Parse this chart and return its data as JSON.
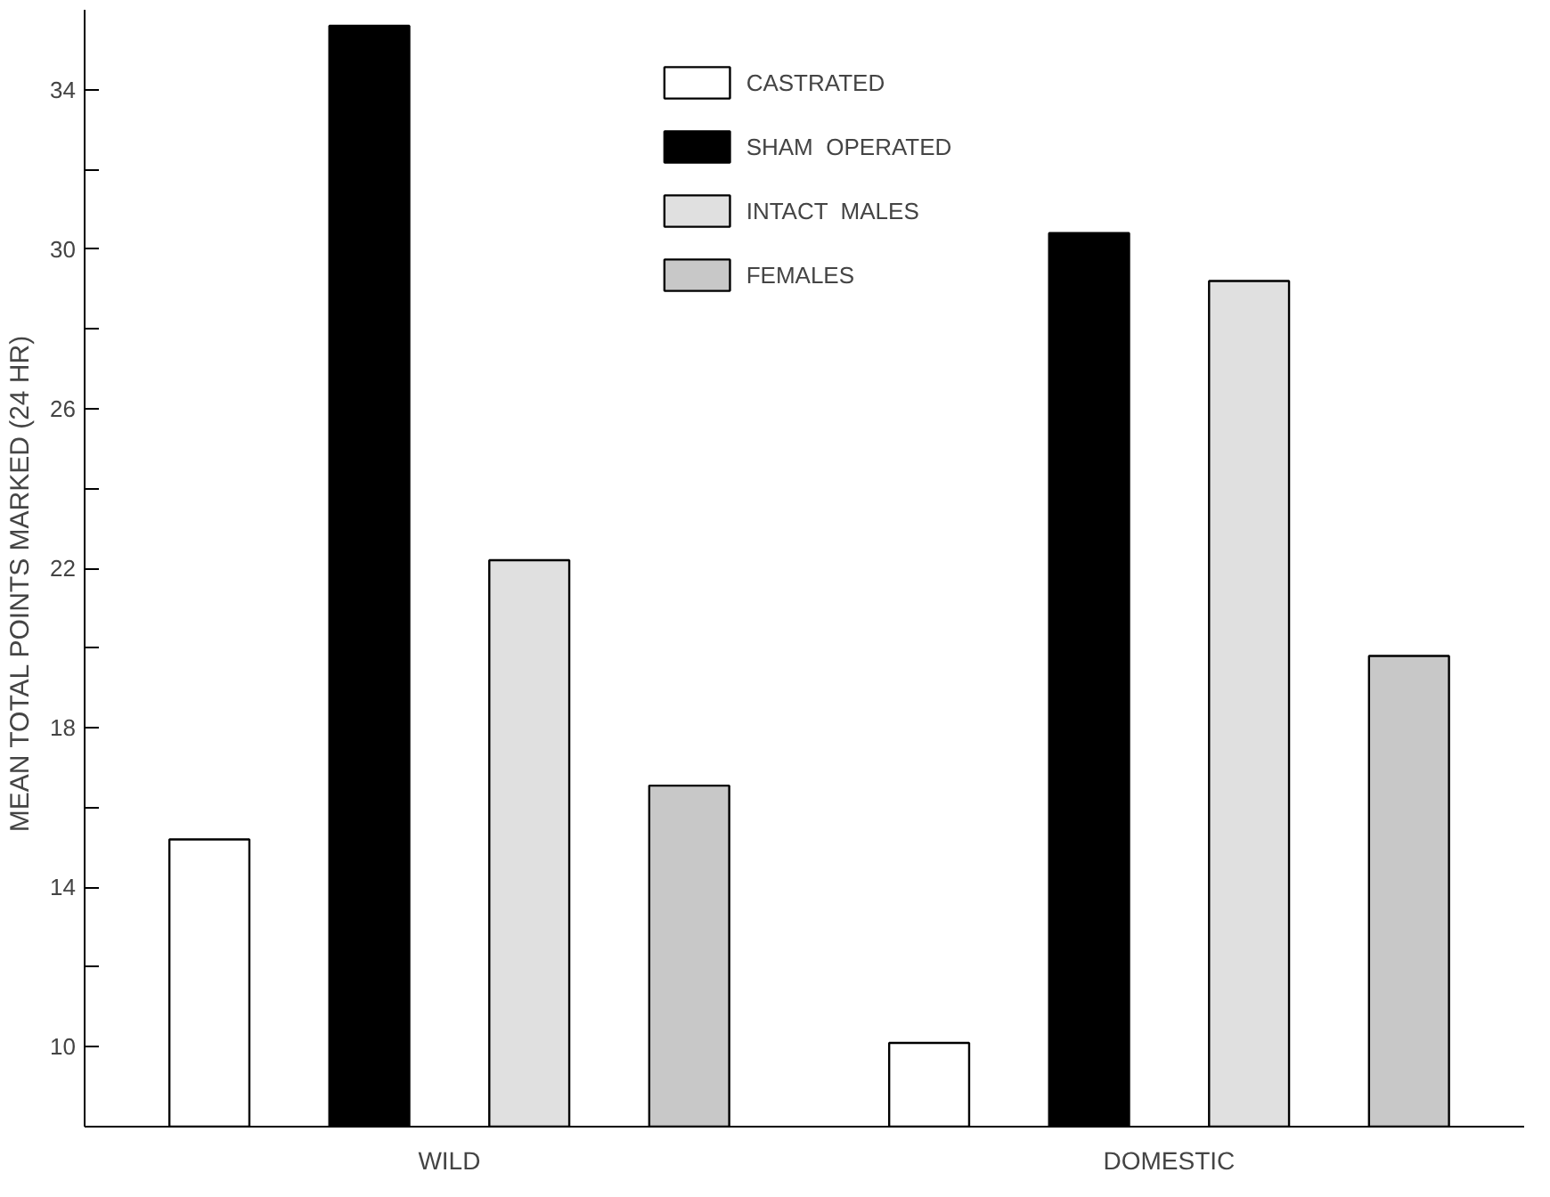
{
  "chart_data": {
    "type": "bar",
    "ylabel": "MEAN  TOTAL  POINTS  MARKED  (24 HR)",
    "categories": [
      "WILD",
      "DOMESTIC"
    ],
    "series": [
      {
        "name": "CASTRATED",
        "color": "#ffffff",
        "values": [
          15.2,
          10.1
        ]
      },
      {
        "name": "SHAM  OPERATED",
        "color": "#000000",
        "values": [
          35.6,
          30.4
        ]
      },
      {
        "name": "INTACT  MALES",
        "color": "#e0e0e0",
        "values": [
          22.2,
          29.2
        ]
      },
      {
        "name": "FEMALES",
        "color": "#c8c8c8",
        "values": [
          16.55,
          19.8
        ]
      }
    ],
    "ylim": [
      8,
      36
    ],
    "yticks": [
      10,
      {
        "value": 12,
        "label": null
      },
      14,
      {
        "value": 16,
        "label": null
      },
      18,
      {
        "value": 20,
        "label": null
      },
      22,
      {
        "value": 24,
        "label": null
      },
      26,
      {
        "value": 28,
        "label": null
      },
      30,
      {
        "value": 32,
        "label": null
      },
      34
    ],
    "grid": false,
    "legend": "top"
  }
}
